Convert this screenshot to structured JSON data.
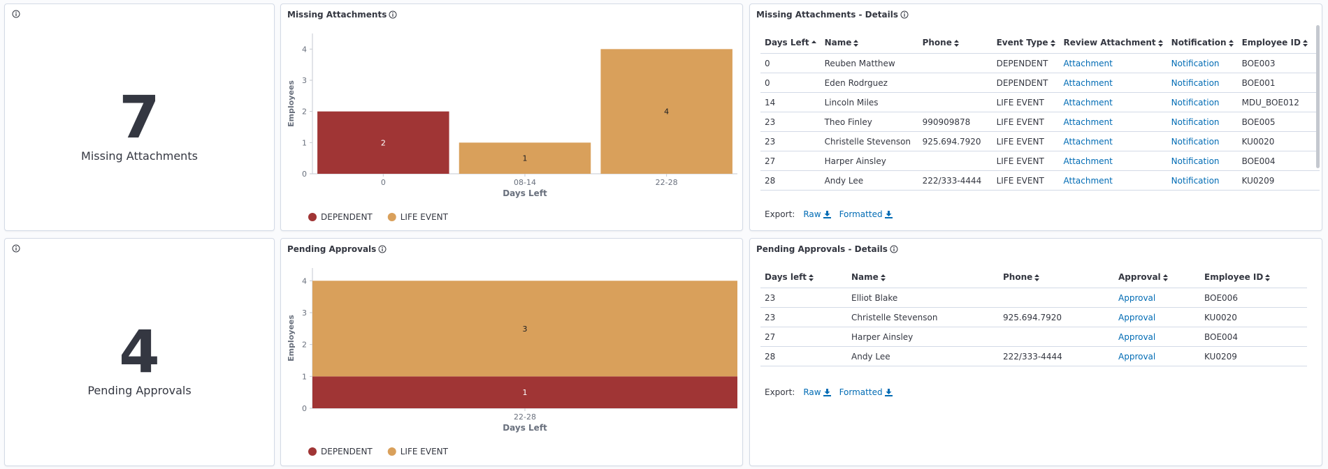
{
  "metrics": [
    {
      "value": 7,
      "label": "Missing Attachments"
    },
    {
      "value": 4,
      "label": "Pending Approvals"
    }
  ],
  "charts": [
    {
      "type": "bar",
      "stacked": true,
      "title": "Missing Attachments",
      "x_label": "Days Left",
      "y_label": "Employees",
      "categories": [
        "0",
        "08-14",
        "22-28"
      ],
      "series": [
        {
          "name": "DEPENDENT",
          "color": "#a03535",
          "values": [
            2,
            null,
            null
          ]
        },
        {
          "name": "LIFE EVENT",
          "color": "#d9a05b",
          "values": [
            null,
            1,
            4
          ]
        }
      ],
      "ylim": [
        0,
        4.5
      ],
      "yticks": [
        0,
        1,
        2,
        3,
        4
      ]
    },
    {
      "type": "bar",
      "stacked": true,
      "title": "Pending Approvals",
      "x_label": "Days Left",
      "y_label": "Employees",
      "categories": [
        "22-28"
      ],
      "series": [
        {
          "name": "DEPENDENT",
          "color": "#a03535",
          "values": [
            1
          ]
        },
        {
          "name": "LIFE EVENT",
          "color": "#d9a05b",
          "values": [
            3
          ]
        }
      ],
      "ylim": [
        0,
        4.4
      ],
      "yticks": [
        0,
        1,
        2,
        3,
        4
      ]
    }
  ],
  "tables": [
    {
      "title": "Missing Attachments - Details",
      "columns": [
        "Days Left",
        "Name",
        "Phone",
        "Event Type",
        "Review Attachment",
        "Notification",
        "Employee ID"
      ],
      "link_columns": [
        4,
        5
      ],
      "rows": [
        [
          0,
          "Reuben Matthew",
          null,
          "DEPENDENT",
          "Attachment",
          "Notification",
          "BOE003"
        ],
        [
          0,
          "Eden Rodrguez",
          null,
          "DEPENDENT",
          "Attachment",
          "Notification",
          "BOE001"
        ],
        [
          14,
          "Lincoln Miles",
          null,
          "LIFE EVENT",
          "Attachment",
          "Notification",
          "MDU_BOE012"
        ],
        [
          23,
          "Theo Finley",
          "990909878",
          "LIFE EVENT",
          "Attachment",
          "Notification",
          "BOE005"
        ],
        [
          23,
          "Christelle Stevenson",
          "925.694.7920",
          "LIFE EVENT",
          "Attachment",
          "Notification",
          "KU0020"
        ],
        [
          27,
          "Harper Ainsley",
          null,
          "LIFE EVENT",
          "Attachment",
          "Notification",
          "BOE004"
        ],
        [
          28,
          "Andy Lee",
          "222/333-4444",
          "LIFE EVENT",
          "Attachment",
          "Notification",
          "KU0209"
        ]
      ],
      "export": {
        "label": "Export:",
        "raw": "Raw",
        "formatted": "Formatted"
      }
    },
    {
      "title": "Pending Approvals - Details",
      "columns": [
        "Days left",
        "Name",
        "Phone",
        "Approval",
        "Employee ID"
      ],
      "link_columns": [
        3
      ],
      "rows": [
        [
          23,
          "Elliot Blake",
          null,
          "Approval",
          "BOE006"
        ],
        [
          23,
          "Christelle Stevenson",
          "925.694.7920",
          "Approval",
          "KU0020"
        ],
        [
          27,
          "Harper Ainsley",
          null,
          "Approval",
          "BOE004"
        ],
        [
          28,
          "Andy Lee",
          "222/333-4444",
          "Approval",
          "KU0209"
        ]
      ],
      "export": {
        "label": "Export:",
        "raw": "Raw",
        "formatted": "Formatted"
      }
    }
  ]
}
